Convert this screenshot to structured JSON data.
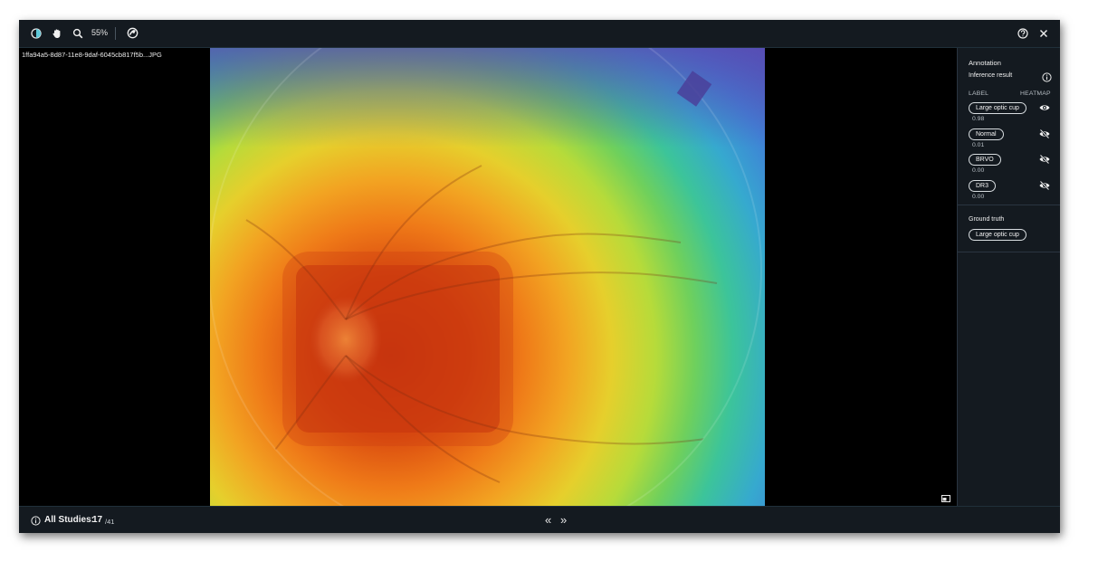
{
  "toolbar": {
    "icons": [
      "contrast-icon",
      "pan-hand-icon",
      "zoom-icon",
      "overlay-toggle-icon",
      "help-icon",
      "close-icon"
    ],
    "zoom_label": "55%"
  },
  "viewer": {
    "file_name": "1ffa94a5-8d87-11e8-9daf-6045cb817f5b...JPG"
  },
  "sidebar": {
    "annotation_title": "Annotation",
    "inference_title": "Inference result",
    "col_label": "LABEL",
    "col_heatmap": "HEATMAP",
    "results": [
      {
        "label": "Large optic cup",
        "score": "0.98",
        "heatmap_visible": true
      },
      {
        "label": "Normal",
        "score": "0.01",
        "heatmap_visible": false
      },
      {
        "label": "BRVO",
        "score": "0.00",
        "heatmap_visible": false
      },
      {
        "label": "DR3",
        "score": "0.00",
        "heatmap_visible": false
      }
    ],
    "ground_truth_title": "Ground truth",
    "ground_truth_label": "Large optic cup"
  },
  "footer": {
    "studies_label": "All Studies:",
    "current": "17",
    "total": "/41",
    "prev_symbol": "«",
    "next_symbol": "»"
  },
  "colors": {
    "background": "#000000",
    "panel": "#141a20",
    "heatmap_hot": "#c8320f",
    "heatmap_cold": "#4a3f9a"
  }
}
